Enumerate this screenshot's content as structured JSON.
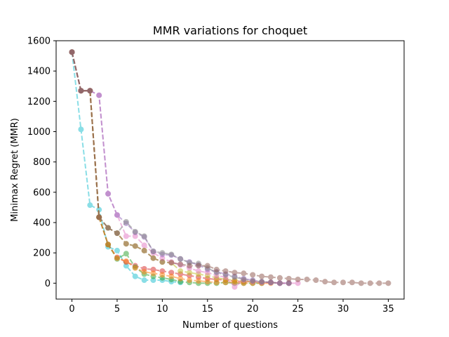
{
  "chart_data": {
    "type": "line",
    "title": "MMR variations for choquet",
    "xlabel": "Number of questions",
    "ylabel": "Minimax Regret (MMR)",
    "xlim": [
      -1.75,
      36.75
    ],
    "ylim": [
      -105,
      1600
    ],
    "xticks": [
      0,
      5,
      10,
      15,
      20,
      25,
      30,
      35
    ],
    "yticks": [
      0,
      200,
      400,
      600,
      800,
      1000,
      1200,
      1400,
      1600
    ],
    "grid": false,
    "line_style": "dashed",
    "marker": "circle",
    "alpha": 0.5,
    "series": [
      {
        "color": "#17becf",
        "x": [
          0,
          1,
          2,
          3,
          4,
          5,
          6,
          7,
          8,
          9,
          10,
          11,
          12
        ],
        "y": [
          1525,
          1015,
          515,
          485,
          240,
          215,
          115,
          45,
          20,
          20,
          20,
          10,
          5
        ]
      },
      {
        "color": "#d62728",
        "x": [
          0,
          1,
          2,
          3,
          4,
          5,
          6,
          7,
          8,
          9,
          10,
          11,
          12,
          13,
          14,
          15,
          16,
          17,
          18,
          19,
          20,
          21,
          22,
          23,
          24
        ],
        "y": [
          1525,
          1270,
          1270,
          435,
          255,
          170,
          140,
          115,
          95,
          90,
          80,
          70,
          60,
          50,
          40,
          30,
          25,
          20,
          15,
          10,
          10,
          5,
          5,
          0,
          0
        ]
      },
      {
        "color": "#2ca02c",
        "x": [
          0,
          1,
          2,
          3,
          4,
          5,
          6,
          7,
          8,
          9,
          10,
          11,
          12,
          13,
          14,
          15,
          16,
          17,
          18,
          19,
          20,
          21
        ],
        "y": [
          1525,
          1270,
          1270,
          435,
          255,
          160,
          195,
          105,
          60,
          45,
          35,
          25,
          10,
          5,
          0,
          0,
          0,
          5,
          0,
          0,
          0,
          0
        ]
      },
      {
        "color": "#bcbd22",
        "x": [
          0,
          1,
          2,
          3,
          4,
          5,
          6,
          7,
          8,
          9,
          10,
          11,
          12,
          13,
          14,
          15,
          16,
          17,
          18,
          19,
          20,
          21
        ],
        "y": [
          1525,
          1270,
          1270,
          435,
          365,
          330,
          260,
          245,
          215,
          165,
          140,
          135,
          80,
          70,
          60,
          50,
          35,
          25,
          20,
          15,
          10,
          5
        ]
      },
      {
        "color": "#ff7f0e",
        "x": [
          0,
          1,
          2,
          3,
          4,
          5,
          6,
          7,
          8,
          9,
          10,
          11,
          12,
          13,
          14,
          15,
          16,
          17,
          18,
          19,
          20,
          21,
          22
        ],
        "y": [
          1525,
          1270,
          1270,
          435,
          255,
          165,
          145,
          100,
          75,
          65,
          55,
          45,
          30,
          20,
          15,
          10,
          5,
          5,
          5,
          0,
          0,
          0,
          0
        ]
      },
      {
        "color": "#e377c2",
        "x": [
          0,
          1,
          2,
          3,
          4,
          5,
          6,
          7,
          8,
          9,
          10,
          11,
          12,
          13,
          14,
          15,
          16,
          17,
          18,
          19,
          20,
          21,
          22,
          23,
          24,
          25
        ],
        "y": [
          1525,
          1270,
          1270,
          1240,
          590,
          450,
          310,
          310,
          250,
          200,
          165,
          140,
          120,
          100,
          80,
          70,
          50,
          40,
          -25,
          20,
          10,
          5,
          5,
          0,
          0,
          0
        ]
      },
      {
        "color": "#9467bd",
        "x": [
          0,
          1,
          2,
          3,
          4,
          5,
          6,
          7,
          8,
          9,
          10,
          11,
          12,
          13,
          14,
          15,
          16,
          17,
          18,
          19,
          20,
          21,
          22,
          23,
          24
        ],
        "y": [
          1525,
          1270,
          1270,
          1240,
          590,
          450,
          395,
          335,
          305,
          210,
          190,
          185,
          160,
          140,
          120,
          90,
          75,
          60,
          45,
          30,
          20,
          10,
          5,
          0,
          0
        ]
      },
      {
        "color": "#7f7f7f",
        "x": [
          0,
          1,
          2,
          3,
          4,
          5,
          6,
          7,
          8,
          9,
          10,
          11,
          12,
          13,
          14,
          15,
          16,
          17,
          18,
          19,
          20,
          21,
          22,
          23,
          24
        ],
        "y": [
          1525,
          1270,
          1270,
          435,
          365,
          330,
          405,
          340,
          310,
          210,
          200,
          190,
          160,
          135,
          130,
          100,
          70,
          55,
          40,
          25,
          15,
          10,
          5,
          0,
          0
        ]
      },
      {
        "color": "#8c564b",
        "x": [
          0,
          1,
          2,
          3,
          4,
          5,
          6,
          7,
          8,
          9,
          10,
          11,
          12,
          13,
          14,
          15,
          16,
          17,
          18,
          19,
          20,
          21,
          22,
          23,
          24,
          25,
          26,
          27,
          28,
          29,
          30,
          31,
          32,
          33,
          34,
          35
        ],
        "y": [
          1525,
          1270,
          1270,
          435,
          365,
          330,
          260,
          245,
          215,
          165,
          140,
          135,
          125,
          115,
          115,
          115,
          90,
          80,
          70,
          65,
          55,
          45,
          40,
          35,
          30,
          25,
          25,
          20,
          10,
          5,
          5,
          5,
          0,
          0,
          0,
          0
        ]
      }
    ]
  }
}
